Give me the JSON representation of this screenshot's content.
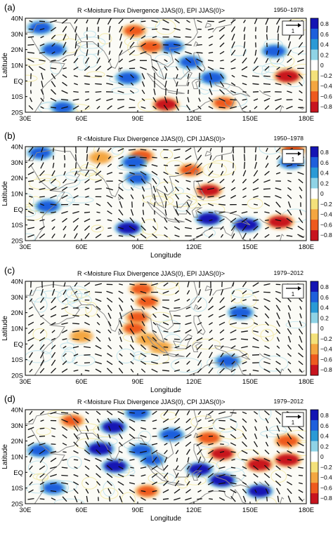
{
  "figure": {
    "panels": [
      {
        "label": "(a)",
        "title": "R <Moisture Flux Divergence JJAS(0), EPI JJAS(0)>",
        "period": "1950–1978",
        "ylabel": "Latitude",
        "xlabel": "",
        "vector_key": "1"
      },
      {
        "label": "(b)",
        "title": "R <Moisture Flux Divergence JJAS(0), CPI JJAS(0)>",
        "period": "1950–1978",
        "ylabel": "Latitude",
        "xlabel": "Longitude",
        "vector_key": "1"
      },
      {
        "label": "(c)",
        "title": "R <Moisture Flux Divergence JJAS(0), EPI JJAS(0)>",
        "period": "1979–2012",
        "ylabel": "Latitude",
        "xlabel": "Longitude",
        "vector_key": "1"
      },
      {
        "label": "(d)",
        "title": "R <Moisture Flux Divergence JJAS(0), CPI JJAS(0)>",
        "period": "1979–2012",
        "ylabel": "Latitude",
        "xlabel": "Longitude",
        "vector_key": "1"
      }
    ]
  },
  "chart_data": {
    "type": "heatmap",
    "x_ticks": [
      "30E",
      "60E",
      "90E",
      "120E",
      "150E",
      "180E"
    ],
    "y_ticks": [
      "40N",
      "30N",
      "20N",
      "10N",
      "EQ",
      "10S",
      "20S"
    ],
    "xlim": [
      30,
      180
    ],
    "ylim": [
      -20,
      40
    ],
    "colorbar": {
      "ticks": [
        "0.8",
        "0.6",
        "0.4",
        "0.2",
        "0",
        "−0.2",
        "−0.4",
        "−0.6",
        "−0.8"
      ],
      "range": [
        -0.8,
        0.8
      ],
      "colors": [
        "#1414b4",
        "#1e5fdc",
        "#2a9ad6",
        "#8fd3e6",
        "#ffffff",
        "#f4e17a",
        "#f4a640",
        "#ee5a1e",
        "#c8141e"
      ]
    },
    "grid": false,
    "overlay": "wind vectors with reference key",
    "panels": [
      {
        "label": "(a)",
        "blobs": [
          {
            "lon": 38,
            "lat": 34,
            "value": 0.6
          },
          {
            "lon": 45,
            "lat": 20,
            "value": 0.6
          },
          {
            "lon": 50,
            "lat": -17,
            "value": 0.5
          },
          {
            "lon": 88,
            "lat": 32,
            "value": -0.5
          },
          {
            "lon": 108,
            "lat": 22,
            "value": 0.6
          },
          {
            "lon": 85,
            "lat": 2,
            "value": 0.6
          },
          {
            "lon": 118,
            "lat": 12,
            "value": 0.5
          },
          {
            "lon": 130,
            "lat": 2,
            "value": 0.6
          },
          {
            "lon": 163,
            "lat": 19,
            "value": 0.6
          },
          {
            "lon": 170,
            "lat": 3,
            "value": -0.8
          },
          {
            "lon": 105,
            "lat": -15,
            "value": -0.7
          },
          {
            "lon": 136,
            "lat": -14,
            "value": -0.5
          },
          {
            "lon": 97,
            "lat": 22,
            "value": -0.6
          }
        ]
      },
      {
        "label": "(b)",
        "blobs": [
          {
            "lon": 38,
            "lat": 36,
            "value": 0.6
          },
          {
            "lon": 42,
            "lat": 2,
            "value": 0.6
          },
          {
            "lon": 70,
            "lat": 33,
            "value": -0.4
          },
          {
            "lon": 92,
            "lat": 34,
            "value": -0.6
          },
          {
            "lon": 88,
            "lat": 30,
            "value": 0.6
          },
          {
            "lon": 118,
            "lat": 25,
            "value": -0.5
          },
          {
            "lon": 90,
            "lat": 20,
            "value": 0.6
          },
          {
            "lon": 128,
            "lat": 12,
            "value": -0.7
          },
          {
            "lon": 85,
            "lat": -12,
            "value": 0.7
          },
          {
            "lon": 128,
            "lat": -6,
            "value": 0.7
          },
          {
            "lon": 148,
            "lat": -10,
            "value": 0.8
          },
          {
            "lon": 166,
            "lat": -8,
            "value": -0.8
          },
          {
            "lon": 173,
            "lat": 38,
            "value": -0.5
          },
          {
            "lon": 172,
            "lat": 30,
            "value": 0.6
          }
        ]
      },
      {
        "label": "(c)",
        "blobs": [
          {
            "lon": 92,
            "lat": 35,
            "value": -0.5
          },
          {
            "lon": 95,
            "lat": 27,
            "value": -0.5
          },
          {
            "lon": 90,
            "lat": 17,
            "value": -0.5
          },
          {
            "lon": 88,
            "lat": 10,
            "value": -0.5
          },
          {
            "lon": 95,
            "lat": 3,
            "value": -0.4
          },
          {
            "lon": 102,
            "lat": -2,
            "value": -0.4
          },
          {
            "lon": 145,
            "lat": 20,
            "value": 0.6
          },
          {
            "lon": 138,
            "lat": -11,
            "value": 0.6
          },
          {
            "lon": 60,
            "lat": 5,
            "value": -0.4
          }
        ]
      },
      {
        "label": "(d)",
        "blobs": [
          {
            "lon": 90,
            "lat": 38,
            "value": 0.6
          },
          {
            "lon": 77,
            "lat": 29,
            "value": 0.7
          },
          {
            "lon": 70,
            "lat": 15,
            "value": 0.8
          },
          {
            "lon": 78,
            "lat": 4,
            "value": 0.7
          },
          {
            "lon": 92,
            "lat": 14,
            "value": 0.6
          },
          {
            "lon": 108,
            "lat": 24,
            "value": 0.6
          },
          {
            "lon": 98,
            "lat": 8,
            "value": 0.5
          },
          {
            "lon": 38,
            "lat": 14,
            "value": 0.6
          },
          {
            "lon": 45,
            "lat": -10,
            "value": 0.5
          },
          {
            "lon": 123,
            "lat": 2,
            "value": 0.7
          },
          {
            "lon": 135,
            "lat": -5,
            "value": 0.8
          },
          {
            "lon": 155,
            "lat": -12,
            "value": 0.7
          },
          {
            "lon": 128,
            "lat": 22,
            "value": -0.6
          },
          {
            "lon": 135,
            "lat": 12,
            "value": -0.7
          },
          {
            "lon": 155,
            "lat": 5,
            "value": -0.8
          },
          {
            "lon": 170,
            "lat": 8,
            "value": -0.8
          },
          {
            "lon": 170,
            "lat": 20,
            "value": -0.6
          },
          {
            "lon": 55,
            "lat": 33,
            "value": -0.5
          },
          {
            "lon": 95,
            "lat": -12,
            "value": -0.5
          }
        ]
      }
    ]
  }
}
